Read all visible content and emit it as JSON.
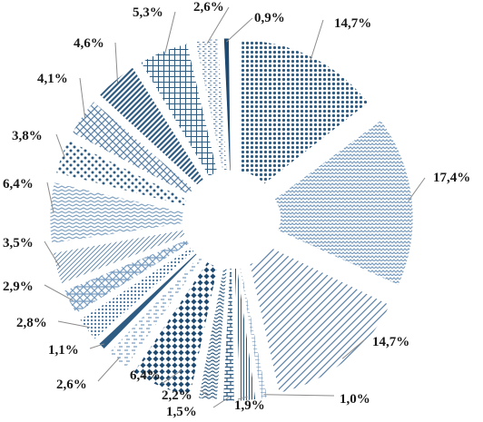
{
  "chart_data": {
    "type": "pie",
    "title": "",
    "start": "top, clockwise",
    "slices": [
      {
        "label": "14,7%",
        "value": 14.7,
        "color": "#2e5b82",
        "pattern": "dots"
      },
      {
        "label": "17,4%",
        "value": 17.4,
        "color": "#7a9ec2",
        "pattern": "zigzag"
      },
      {
        "label": "14,7%",
        "value": 14.7,
        "color": "#5b82a8",
        "pattern": "wide-diagonal"
      },
      {
        "label": "1,0%",
        "value": 1.0,
        "color": "#5b82a8",
        "pattern": "small-grid"
      },
      {
        "label": "1,9%",
        "value": 1.9,
        "color": "#2e5b82",
        "pattern": "vertical"
      },
      {
        "label": "1,5%",
        "value": 1.5,
        "color": "#2e5b82",
        "pattern": "brick"
      },
      {
        "label": "2,2%",
        "value": 2.2,
        "color": "#2e5b82",
        "pattern": "wave"
      },
      {
        "label": "6,4%",
        "value": 6.4,
        "color": "#1e4a72",
        "pattern": "diamond"
      },
      {
        "label": "2,6%",
        "value": 2.6,
        "color": "#7a9ec2",
        "pattern": "dashes"
      },
      {
        "label": "1,1%",
        "value": 1.1,
        "color": "#2e5b82",
        "pattern": "solid"
      },
      {
        "label": "2,8%",
        "value": 2.8,
        "color": "#5b82a8",
        "pattern": "stipple"
      },
      {
        "label": "2,9%",
        "value": 2.9,
        "color": "#7a9ec2",
        "pattern": "checker"
      },
      {
        "label": "3,5%",
        "value": 3.5,
        "color": "#5b82a8",
        "pattern": "diagonal-thin"
      },
      {
        "label": "6,4%",
        "value": 6.4,
        "color": "#7a9ec2",
        "pattern": "zigzag-wide"
      },
      {
        "label": "3,8%",
        "value": 3.8,
        "color": "#2e5b82",
        "pattern": "sparse-dots"
      },
      {
        "label": "4,1%",
        "value": 4.1,
        "color": "#5b82a8",
        "pattern": "diag-cross"
      },
      {
        "label": "4,6%",
        "value": 4.6,
        "color": "#2e5b82",
        "pattern": "diagonal-thick"
      },
      {
        "label": "5,3%",
        "value": 5.3,
        "color": "#2e5b82",
        "pattern": "grid"
      },
      {
        "label": "2,6%",
        "value": 2.6,
        "color": "#5b82a8",
        "pattern": "small-dashes"
      },
      {
        "label": "0,9%",
        "value": 0.9,
        "color": "#1e4a72",
        "pattern": "solid"
      }
    ]
  }
}
